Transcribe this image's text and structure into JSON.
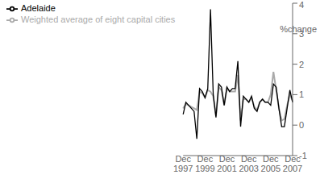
{
  "chart_data": {
    "type": "line",
    "title": "",
    "ylabel": "%change",
    "categories": [
      "Dec\n1997",
      null,
      null,
      null,
      null,
      null,
      null,
      null,
      "Dec\n1999",
      null,
      null,
      null,
      null,
      null,
      null,
      null,
      "Dec\n2001",
      null,
      null,
      null,
      null,
      null,
      null,
      null,
      "Dec\n2003",
      null,
      null,
      null,
      null,
      null,
      null,
      null,
      "Dec\n2005",
      null,
      null,
      null,
      null,
      null,
      null,
      null,
      "Dec\n2007"
    ],
    "series": [
      {
        "name": "Weighted average of eight capital cities",
        "color": "#aaaaaa",
        "values": [
          0.55,
          0.7,
          0.65,
          0.6,
          0.55,
          0.5,
          1.1,
          1.05,
          0.9,
          1.15,
          1.1,
          0.95,
          0.3,
          1.25,
          1.15,
          0.65,
          1.2,
          1.1,
          1.1,
          1.1,
          1.65,
          0.15,
          0.85,
          0.85,
          0.75,
          0.9,
          0.6,
          0.5,
          0.75,
          0.85,
          0.75,
          0.75,
          1.0,
          1.75,
          1.15,
          0.55,
          0.15,
          0.2,
          0.65,
          1.0,
          0.8
        ]
      },
      {
        "name": "Adelaide",
        "color": "#000000",
        "values": [
          0.35,
          0.75,
          0.65,
          0.55,
          0.45,
          -0.45,
          1.2,
          1.1,
          0.9,
          1.2,
          3.8,
          1.0,
          0.25,
          1.35,
          1.25,
          0.65,
          1.25,
          1.1,
          1.2,
          1.2,
          2.1,
          -0.05,
          0.95,
          0.85,
          0.75,
          0.95,
          0.55,
          0.45,
          0.75,
          0.85,
          0.75,
          0.75,
          0.65,
          1.35,
          1.25,
          0.55,
          -0.05,
          -0.05,
          0.55,
          1.15,
          0.75
        ]
      }
    ],
    "ylim": [
      -1,
      4
    ],
    "yticks": [
      -1,
      0,
      1,
      2,
      3,
      4
    ],
    "grid": false,
    "legend": "upper left"
  }
}
